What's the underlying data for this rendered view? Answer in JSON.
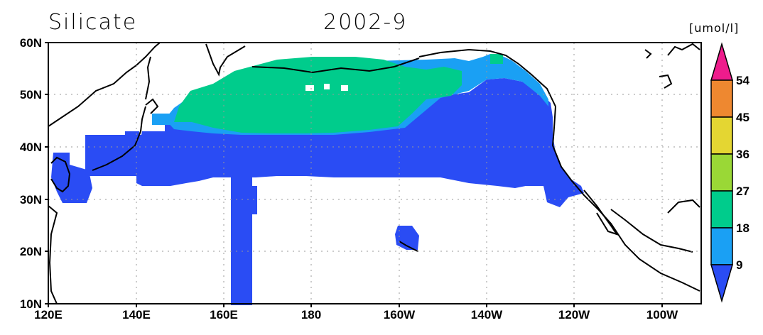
{
  "header": {
    "variable": "Silicate",
    "date": "2002-9",
    "units": "[umol/l]"
  },
  "map": {
    "lon_range": [
      "120E",
      "90W"
    ],
    "lat_range": [
      "10N",
      "60N"
    ],
    "lon_ticks": [
      "120E",
      "140E",
      "160E",
      "180",
      "160W",
      "140W",
      "120W",
      "100W"
    ],
    "lat_ticks": [
      "10N",
      "20N",
      "30N",
      "40N",
      "50N",
      "60N"
    ],
    "gridlines": "dotted"
  },
  "colorbar": {
    "labels": [
      "9",
      "18",
      "27",
      "36",
      "45",
      "54"
    ],
    "colors": [
      "#2a4cf4",
      "#1aa0f4",
      "#00cc8c",
      "#9ad836",
      "#e4d632",
      "#ee8830",
      "#ee1c8c"
    ]
  },
  "colors": {
    "land_outline": "#000000",
    "band_lt9": "#2a4cf4",
    "band_9_18": "#1aa0f4",
    "band_18_27": "#00cc8c"
  }
}
